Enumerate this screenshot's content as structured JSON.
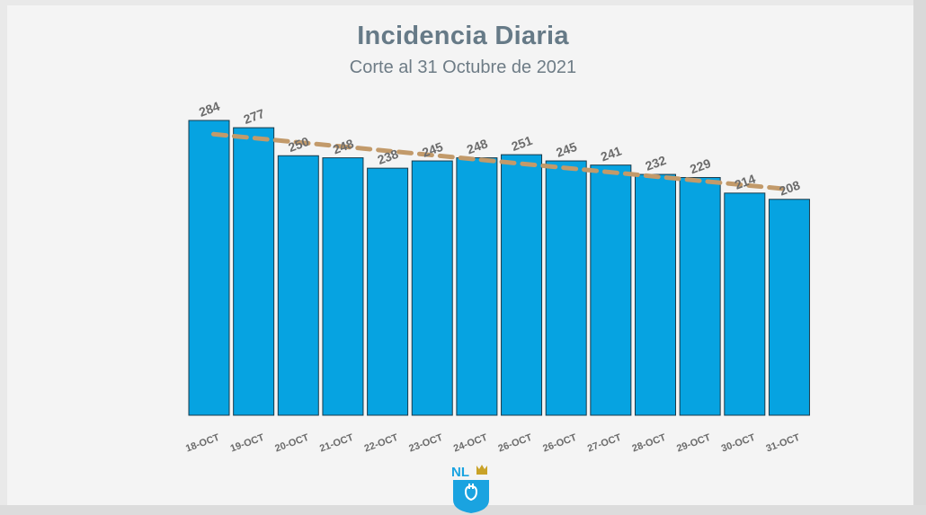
{
  "chart_data": {
    "type": "bar",
    "title": "Incidencia Diaria",
    "subtitle": "Corte al 31 Octubre de 2021",
    "categories": [
      "18-OCT",
      "19-OCT",
      "20-OCT",
      "21-OCT",
      "22-OCT",
      "23-OCT",
      "24-OCT",
      "26-OCT",
      "26-OCT",
      "27-OCT",
      "28-OCT",
      "29-OCT",
      "30-OCT",
      "31-OCT"
    ],
    "series": [
      {
        "values": [
          284,
          277,
          250,
          248,
          238,
          245,
          248,
          251,
          245,
          241,
          232,
          229,
          214,
          208
        ]
      }
    ],
    "data_labels": [
      "284",
      "277",
      "250",
      "248",
      "238",
      "245",
      "248",
      "251",
      "245",
      "241",
      "232",
      "229",
      "214",
      "208"
    ],
    "trendline": {
      "type": "linear",
      "style": "dashed"
    },
    "ylim": [
      0,
      300
    ],
    "grid": false,
    "legend": "none",
    "bar_color": "#06a3e1",
    "bar_edge_color": "#1a3a4a",
    "trend_color": "#c29a6a",
    "label_color": "#6b6b6b"
  },
  "logo": {
    "text": "NL",
    "accent_color": "#c9a227",
    "shield_color": "#1aa3e0"
  }
}
